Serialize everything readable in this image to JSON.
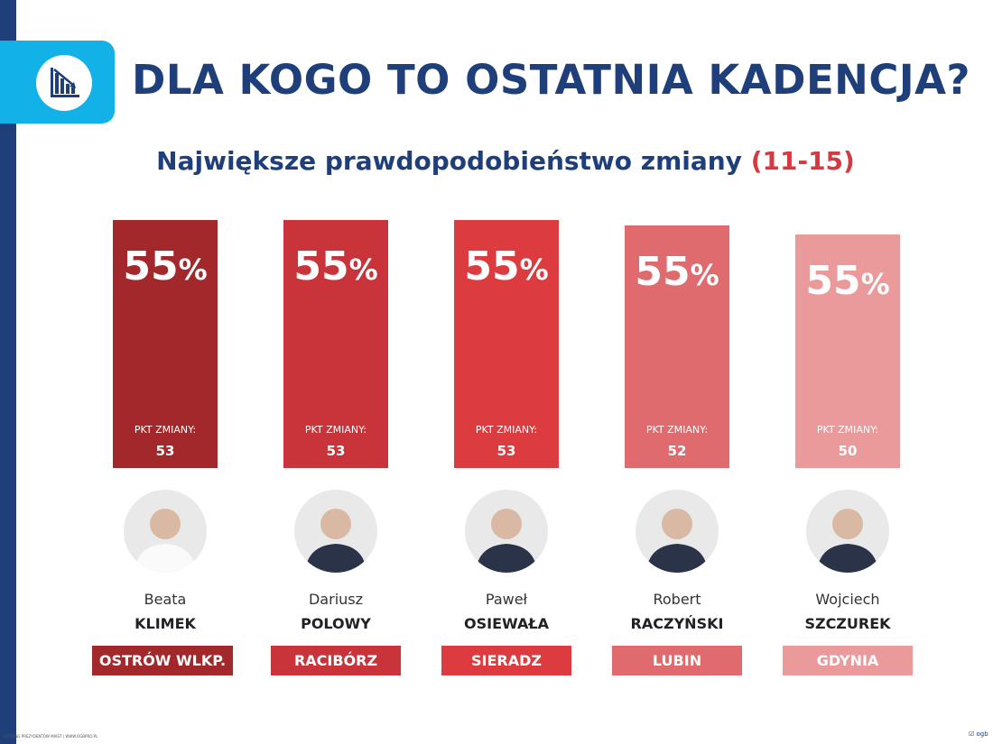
{
  "header": {
    "title": "DLA KOGO TO OSTATNIA KADENCJA?",
    "icon": "declining-bar-chart-icon",
    "subtitle": "Największe prawdopodobieństwo zmiany",
    "subtitle_range": "(11-15)"
  },
  "chart_data": {
    "type": "bar",
    "title": "DLA KOGO TO OSTATNIA KADENCJA?",
    "subtitle": "Największe prawdopodobieństwo zmiany (11-15)",
    "categories": [
      "OSTRÓW WLKP.",
      "RACIBÓRZ",
      "SIERADZ",
      "LUBIN",
      "GDYNIA"
    ],
    "values_label": [
      "55",
      "55",
      "55",
      "55",
      "55"
    ],
    "pkt_label": "PKT ZMIANY:",
    "pkt_values": [
      53,
      53,
      53,
      52,
      50
    ],
    "colors": [
      "#a3282b",
      "#c8343a",
      "#dc3b3f",
      "#e06b6e",
      "#ea9a9b"
    ]
  },
  "people": [
    {
      "first": "Beata",
      "last": "KLIMEK",
      "city": "OSTRÓW WLKP.",
      "pct": "55",
      "pct_sign": "%",
      "pkt": "53"
    },
    {
      "first": "Dariusz",
      "last": "POLOWY",
      "city": "RACIBÓRZ",
      "pct": "55",
      "pct_sign": "%",
      "pkt": "53"
    },
    {
      "first": "Paweł",
      "last": "OSIEWAŁA",
      "city": "SIERADZ",
      "pct": "55",
      "pct_sign": "%",
      "pkt": "53"
    },
    {
      "first": "Robert",
      "last": "RACZYŃSKI",
      "city": "LUBIN",
      "pct": "55",
      "pct_sign": "%",
      "pkt": "52"
    },
    {
      "first": "Wojciech",
      "last": "SZCZUREK",
      "city": "GDYNIA",
      "pct": "55",
      "pct_sign": "%",
      "pkt": "50"
    }
  ],
  "footer": {
    "text": "SCORING PREZYDENTÓW MIAST | WWW.OGBPRO.PL",
    "logo": "ogb"
  }
}
